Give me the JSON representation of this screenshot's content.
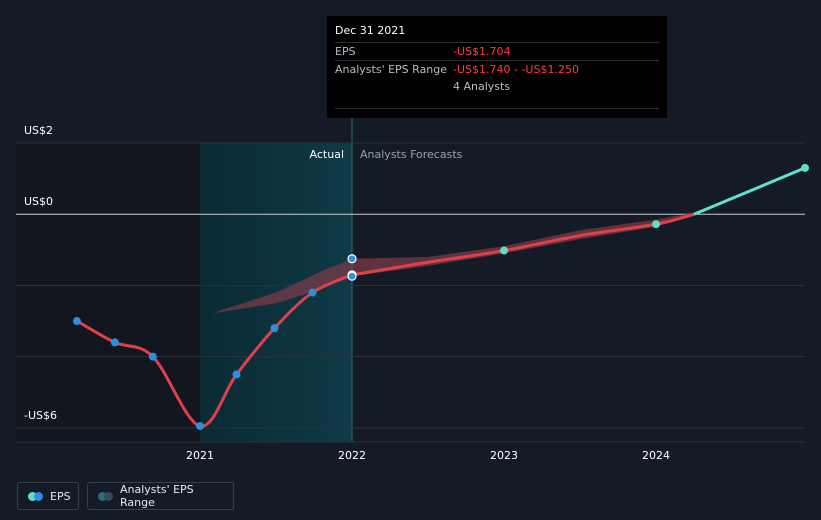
{
  "chart_data": {
    "type": "line",
    "y_tick_labels": [
      {
        "label": "US$2",
        "value": 2
      },
      {
        "label": "US$0",
        "value": 0
      },
      {
        "label": "-US$6",
        "value": -6
      }
    ],
    "gridlines": [
      2,
      0,
      -2,
      -4,
      -6
    ],
    "ylim": [
      -6.2,
      2
    ],
    "xlim": [
      2020.0,
      2024.98
    ],
    "x_ticks": [
      {
        "label": "2021",
        "value": 2021.0
      },
      {
        "label": "2022",
        "value": 2022.0
      },
      {
        "label": "2023",
        "value": 2023.0
      },
      {
        "label": "2024",
        "value": 2024.0
      }
    ],
    "actual_label": "Actual",
    "forecast_label": "Analysts Forecasts",
    "highlight_range": [
      2021.0,
      2022.0
    ],
    "actual_start": 2020.0,
    "eps_actual": [
      {
        "x": 2020.19,
        "y": -3.0
      },
      {
        "x": 2020.44,
        "y": -3.6
      },
      {
        "x": 2020.69,
        "y": -4.0
      },
      {
        "x": 2021.0,
        "y": -5.95
      },
      {
        "x": 2021.24,
        "y": -4.5
      },
      {
        "x": 2021.49,
        "y": -3.2
      },
      {
        "x": 2021.74,
        "y": -2.2
      },
      {
        "x": 2022.0,
        "y": -1.704
      }
    ],
    "eps_actual_dots": [
      2020.19,
      2020.44,
      2020.69,
      2021.0,
      2021.24,
      2021.49,
      2021.74,
      2022.0
    ],
    "eps_forecast": [
      {
        "x": 2022.0,
        "y": -1.704
      },
      {
        "x": 2022.5,
        "y": -1.35
      },
      {
        "x": 2023.0,
        "y": -1.02
      },
      {
        "x": 2023.5,
        "y": -0.6
      },
      {
        "x": 2024.0,
        "y": -0.28
      },
      {
        "x": 2024.25,
        "y": 0.0
      },
      {
        "x": 2024.98,
        "y": 1.3
      }
    ],
    "eps_forecast_dots": [
      2023.0,
      2024.0,
      2024.98
    ],
    "range_band": [
      {
        "x": 2021.1,
        "lo": -2.77,
        "hi": -2.75
      },
      {
        "x": 2021.5,
        "lo": -2.5,
        "hi": -2.2
      },
      {
        "x": 2021.8,
        "lo": -2.1,
        "hi": -1.6
      },
      {
        "x": 2022.0,
        "lo": -1.74,
        "hi": -1.25
      },
      {
        "x": 2022.5,
        "lo": -1.45,
        "hi": -1.2
      },
      {
        "x": 2023.0,
        "lo": -1.1,
        "hi": -0.9
      },
      {
        "x": 2023.5,
        "lo": -0.7,
        "hi": -0.45
      },
      {
        "x": 2024.0,
        "lo": -0.35,
        "hi": -0.15
      },
      {
        "x": 2024.25,
        "lo": -0.05,
        "hi": 0.05
      }
    ],
    "range_markers": [
      -1.25,
      -1.74
    ],
    "colors": {
      "eps_line": "#e0404a",
      "eps_future_line": "#60e0d0",
      "eps_dot": "#2e8fe0",
      "forecast_dot": "#5de0c0",
      "band": "#7a3a48",
      "highlight": "#0d3440"
    },
    "legend": [
      {
        "label": "EPS"
      },
      {
        "label": "Analysts' EPS Range"
      }
    ]
  },
  "tooltip": {
    "date": "Dec 31 2021",
    "rows": [
      {
        "key": "EPS",
        "value": "-US$1.704"
      },
      {
        "key": "Analysts' EPS Range",
        "value": "-US$1.740 - -US$1.250"
      },
      {
        "key": "",
        "value": "4 Analysts"
      }
    ]
  },
  "legend": {
    "eps_label": "EPS",
    "range_label": "Analysts' EPS Range",
    "eps_colors": [
      "#5de0c0",
      "#2e8fe0"
    ],
    "range_colors": [
      "#2e6a7a",
      "#3a4a60"
    ]
  }
}
